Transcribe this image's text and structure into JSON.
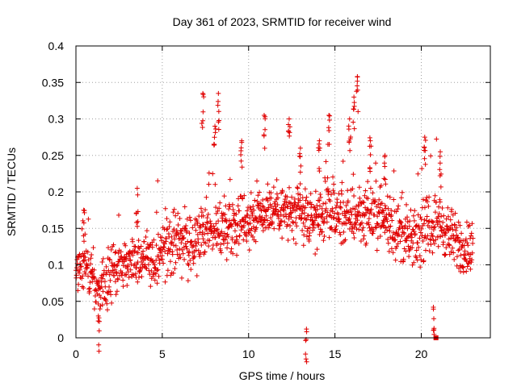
{
  "chart_data": {
    "type": "scatter",
    "title": "Day 361 of 2023, SRMTID for receiver wind",
    "xlabel": "GPS time / hours",
    "ylabel": "SRMTID / TECUs",
    "xlim": [
      0,
      24
    ],
    "ylim": [
      0,
      0.4
    ],
    "x_ticks": [
      0,
      5,
      10,
      15,
      20
    ],
    "x_tick_labels": [
      "0",
      "5",
      "10",
      "15",
      "20"
    ],
    "y_ticks": [
      0,
      0.05,
      0.1,
      0.15,
      0.2,
      0.25,
      0.3,
      0.35,
      0.4
    ],
    "y_tick_labels": [
      "0",
      "0.05",
      "0.1",
      "0.15",
      "0.2",
      "0.25",
      "0.3",
      "0.35",
      "0.4"
    ],
    "grid": true,
    "colors": {
      "series": "#e00000",
      "grid": "#a0a0a0",
      "axis": "#000000"
    },
    "series": [
      {
        "name": "SRMTID",
        "marker": "plus",
        "x_range": [
          0,
          23
        ],
        "x_step": 0.016,
        "y_trend": [
          [
            0,
            0.1
          ],
          [
            0.5,
            0.11
          ],
          [
            1.0,
            0.075
          ],
          [
            1.3,
            0.06
          ],
          [
            2.0,
            0.09
          ],
          [
            3.0,
            0.105
          ],
          [
            4.0,
            0.115
          ],
          [
            4.5,
            0.09
          ],
          [
            5.0,
            0.12
          ],
          [
            6.0,
            0.135
          ],
          [
            6.8,
            0.12
          ],
          [
            7.5,
            0.15
          ],
          [
            8.5,
            0.15
          ],
          [
            9.5,
            0.16
          ],
          [
            10.5,
            0.17
          ],
          [
            11.5,
            0.18
          ],
          [
            12.5,
            0.17
          ],
          [
            13.5,
            0.16
          ],
          [
            14.5,
            0.17
          ],
          [
            15.5,
            0.165
          ],
          [
            16.5,
            0.17
          ],
          [
            17.5,
            0.17
          ],
          [
            18.5,
            0.15
          ],
          [
            19.5,
            0.13
          ],
          [
            20.3,
            0.15
          ],
          [
            21.0,
            0.16
          ],
          [
            22.0,
            0.13
          ],
          [
            23.0,
            0.12
          ]
        ],
        "y_spread": 0.035,
        "spikes": [
          {
            "x": 0.45,
            "y": 0.175
          },
          {
            "x": 3.55,
            "y": 0.205
          },
          {
            "x": 7.35,
            "y": 0.335
          },
          {
            "x": 8.25,
            "y": 0.335
          },
          {
            "x": 8.05,
            "y": 0.29
          },
          {
            "x": 9.6,
            "y": 0.27
          },
          {
            "x": 10.9,
            "y": 0.305
          },
          {
            "x": 12.35,
            "y": 0.3
          },
          {
            "x": 13.0,
            "y": 0.26
          },
          {
            "x": 13.35,
            "y": 0.012
          },
          {
            "x": 14.1,
            "y": 0.27
          },
          {
            "x": 14.65,
            "y": 0.305
          },
          {
            "x": 15.85,
            "y": 0.3
          },
          {
            "x": 16.3,
            "y": 0.358
          },
          {
            "x": 16.1,
            "y": 0.33
          },
          {
            "x": 17.05,
            "y": 0.27
          },
          {
            "x": 17.9,
            "y": 0.25
          },
          {
            "x": 20.2,
            "y": 0.275
          },
          {
            "x": 21.1,
            "y": 0.255
          },
          {
            "x": 20.7,
            "y": 0.042
          },
          {
            "x": 1.3,
            "y": 0.03
          }
        ],
        "extra_marker": {
          "x": 20.85,
          "y": 0.0,
          "shape": "square"
        }
      }
    ]
  }
}
